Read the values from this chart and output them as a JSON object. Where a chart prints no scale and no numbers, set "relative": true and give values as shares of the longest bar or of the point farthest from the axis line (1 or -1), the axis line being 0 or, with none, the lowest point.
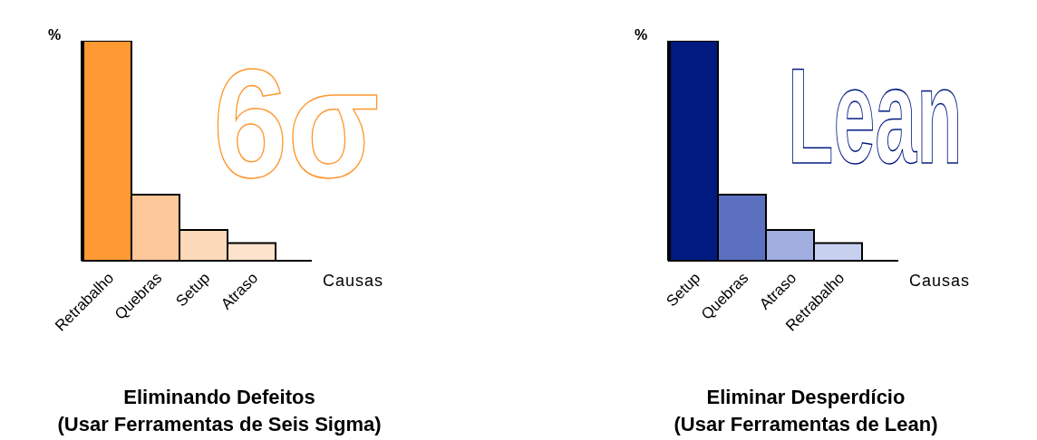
{
  "chart_data": [
    {
      "type": "bar",
      "title": "Eliminando Defeitos",
      "subtitle": "(Usar Ferramentas de Seis Sigma)",
      "ylabel": "%",
      "xlabel": "Causas",
      "relative": true,
      "categories": [
        "Retrabalho",
        "Quebras",
        "Setup",
        "Atraso"
      ],
      "values": [
        1,
        0.3,
        0.14,
        0.08
      ],
      "colors": [
        "#ff9933",
        "#fcc89a",
        "#fcd9b8",
        "#fde3cc"
      ],
      "annotations": [
        "6σ"
      ]
    },
    {
      "type": "bar",
      "title": "Eliminar Desperdício",
      "subtitle": "(Usar Ferramentas de Lean)",
      "ylabel": "%",
      "xlabel": "Causas",
      "relative": true,
      "categories": [
        "Setup",
        "Quebras",
        "Atraso",
        "Retrabalho"
      ],
      "values": [
        1,
        0.3,
        0.14,
        0.08
      ],
      "colors": [
        "#001a80",
        "#5c70c0",
        "#a0afe0",
        "#c8d0f0"
      ],
      "annotations": [
        "Lean"
      ]
    }
  ]
}
